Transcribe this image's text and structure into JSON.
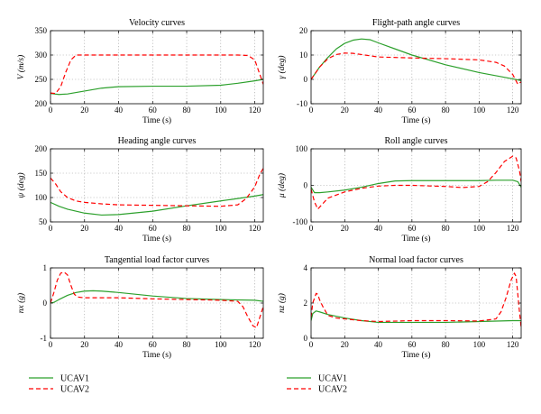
{
  "colors": {
    "UCAV1": "#2ca02c",
    "UCAV2": "#ff0000"
  },
  "legend": [
    {
      "label": "UCAV1",
      "color": "#2ca02c",
      "style": "solid"
    },
    {
      "label": "UCAV2",
      "color": "#ff0000",
      "style": "dashed"
    }
  ],
  "chart_data": [
    {
      "type": "line",
      "title": "Velocity curves",
      "xlabel": "Time (s)",
      "ylabel": "V (m/s)",
      "xlim": [
        0,
        125
      ],
      "ylim": [
        200,
        350
      ],
      "xticks": [
        0,
        20,
        40,
        60,
        80,
        100,
        120
      ],
      "yticks": [
        200,
        250,
        300,
        350
      ],
      "grid": true,
      "series": [
        {
          "name": "UCAV1",
          "x": [
            0,
            5,
            10,
            20,
            30,
            40,
            60,
            80,
            100,
            110,
            120,
            125
          ],
          "y": [
            221,
            219,
            220,
            226,
            232,
            235,
            236,
            236,
            238,
            242,
            247,
            250
          ]
        },
        {
          "name": "UCAV2",
          "x": [
            0,
            3,
            6,
            9,
            12,
            15,
            20,
            40,
            60,
            80,
            100,
            110,
            116,
            120,
            123,
            125
          ],
          "y": [
            222,
            221,
            235,
            265,
            290,
            300,
            300,
            300,
            300,
            300,
            300,
            300,
            299,
            290,
            260,
            240
          ]
        }
      ]
    },
    {
      "type": "line",
      "title": "Flight-path angle curves",
      "xlabel": "Time (s)",
      "ylabel": "γ (deg)",
      "xlim": [
        0,
        125
      ],
      "ylim": [
        -10,
        20
      ],
      "xticks": [
        0,
        20,
        40,
        60,
        80,
        100,
        120
      ],
      "yticks": [
        -10,
        0,
        10,
        20
      ],
      "grid": true,
      "series": [
        {
          "name": "UCAV1",
          "x": [
            0,
            5,
            10,
            15,
            20,
            25,
            30,
            35,
            40,
            50,
            60,
            80,
            100,
            120,
            125
          ],
          "y": [
            0,
            5,
            9,
            12.5,
            14.8,
            16.1,
            16.6,
            16.3,
            15,
            12.5,
            10,
            6,
            2.8,
            0.2,
            -0.5
          ]
        },
        {
          "name": "UCAV2",
          "x": [
            0,
            5,
            10,
            15,
            20,
            25,
            30,
            40,
            60,
            80,
            100,
            110,
            115,
            120,
            123,
            125
          ],
          "y": [
            0,
            5,
            8.5,
            10.2,
            10.8,
            10.7,
            10.2,
            9.2,
            8.8,
            8.5,
            8,
            7,
            5.5,
            2,
            -2,
            -1
          ]
        }
      ]
    },
    {
      "type": "line",
      "title": "Heading angle curves",
      "xlabel": "Time (s)",
      "ylabel": "ψ (deg)",
      "xlim": [
        0,
        125
      ],
      "ylim": [
        50,
        200
      ],
      "xticks": [
        0,
        20,
        40,
        60,
        80,
        100,
        120
      ],
      "yticks": [
        50,
        100,
        150,
        200
      ],
      "grid": true,
      "series": [
        {
          "name": "UCAV1",
          "x": [
            0,
            5,
            10,
            20,
            30,
            40,
            60,
            80,
            100,
            120,
            125
          ],
          "y": [
            90,
            82,
            76,
            68,
            64,
            65,
            72,
            83,
            93,
            103,
            106
          ]
        },
        {
          "name": "UCAV2",
          "x": [
            0,
            3,
            6,
            10,
            15,
            20,
            30,
            40,
            60,
            80,
            100,
            110,
            115,
            120,
            123,
            125
          ],
          "y": [
            140,
            128,
            112,
            100,
            93,
            90,
            87,
            85,
            84,
            83,
            82,
            85,
            98,
            122,
            148,
            160
          ]
        }
      ]
    },
    {
      "type": "line",
      "title": "Roll angle curves",
      "xlabel": "Time (s)",
      "ylabel": "μ (deg)",
      "xlim": [
        0,
        125
      ],
      "ylim": [
        -100,
        100
      ],
      "xticks": [
        0,
        20,
        40,
        60,
        80,
        100,
        120
      ],
      "yticks": [
        -100,
        0,
        100
      ],
      "grid": true,
      "series": [
        {
          "name": "UCAV1",
          "x": [
            0,
            2,
            5,
            10,
            20,
            30,
            40,
            50,
            60,
            80,
            100,
            110,
            120,
            123,
            125
          ],
          "y": [
            -5,
            -20,
            -20,
            -18,
            -13,
            -5,
            5,
            12,
            13,
            13,
            13,
            14,
            14,
            10,
            -5
          ]
        },
        {
          "name": "UCAV2",
          "x": [
            0,
            2,
            4,
            6,
            10,
            20,
            30,
            40,
            50,
            60,
            80,
            90,
            100,
            105,
            110,
            115,
            120,
            122,
            124,
            125
          ],
          "y": [
            -10,
            -45,
            -65,
            -55,
            -35,
            -18,
            -8,
            -2,
            0,
            0,
            -3,
            -6,
            -3,
            10,
            35,
            65,
            80,
            75,
            40,
            10
          ]
        }
      ]
    },
    {
      "type": "line",
      "title": "Tangential load factor curves",
      "xlabel": "Time (s)",
      "ylabel": "nx (g)",
      "xlim": [
        0,
        125
      ],
      "ylim": [
        -1,
        1
      ],
      "xticks": [
        0,
        20,
        40,
        60,
        80,
        100,
        120
      ],
      "yticks": [
        -1,
        0,
        1
      ],
      "grid": true,
      "series": [
        {
          "name": "UCAV1",
          "x": [
            0,
            2,
            5,
            10,
            15,
            20,
            25,
            30,
            40,
            60,
            80,
            100,
            120,
            125
          ],
          "y": [
            0,
            0.02,
            0.1,
            0.22,
            0.3,
            0.34,
            0.35,
            0.34,
            0.3,
            0.2,
            0.13,
            0.1,
            0.08,
            0.05
          ]
        },
        {
          "name": "UCAV2",
          "x": [
            0,
            2,
            4,
            6,
            8,
            10,
            12,
            14,
            16,
            20,
            30,
            40,
            60,
            80,
            100,
            110,
            113,
            116,
            119,
            121,
            123,
            125
          ],
          "y": [
            0,
            0.3,
            0.65,
            0.85,
            0.88,
            0.8,
            0.5,
            0.25,
            0.17,
            0.15,
            0.15,
            0.15,
            0.12,
            0.1,
            0.08,
            0.05,
            -0.1,
            -0.4,
            -0.65,
            -0.7,
            -0.4,
            -0.1
          ]
        }
      ]
    },
    {
      "type": "line",
      "title": "Normal load factor curves",
      "xlabel": "Time (s)",
      "ylabel": "nz (g)",
      "xlim": [
        0,
        125
      ],
      "ylim": [
        0,
        4
      ],
      "xticks": [
        0,
        20,
        40,
        60,
        80,
        100,
        120
      ],
      "yticks": [
        0,
        2,
        4
      ],
      "grid": true,
      "series": [
        {
          "name": "UCAV1",
          "x": [
            0,
            1,
            3,
            5,
            10,
            20,
            30,
            40,
            60,
            80,
            100,
            120,
            125
          ],
          "y": [
            1,
            1.4,
            1.55,
            1.5,
            1.35,
            1.15,
            1,
            0.9,
            0.9,
            0.9,
            0.95,
            1,
            1
          ]
        },
        {
          "name": "UCAV2",
          "x": [
            0,
            1,
            3,
            4,
            5,
            7,
            10,
            15,
            20,
            30,
            40,
            60,
            80,
            100,
            110,
            113,
            116,
            119,
            121,
            122,
            124,
            125
          ],
          "y": [
            1.2,
            2,
            2.55,
            2.5,
            2.2,
            1.8,
            1.3,
            1.15,
            1.1,
            1,
            0.95,
            1,
            1,
            0.98,
            1.1,
            1.5,
            2.3,
            3.3,
            3.7,
            3.5,
            1.5,
            0.6
          ]
        }
      ]
    }
  ]
}
